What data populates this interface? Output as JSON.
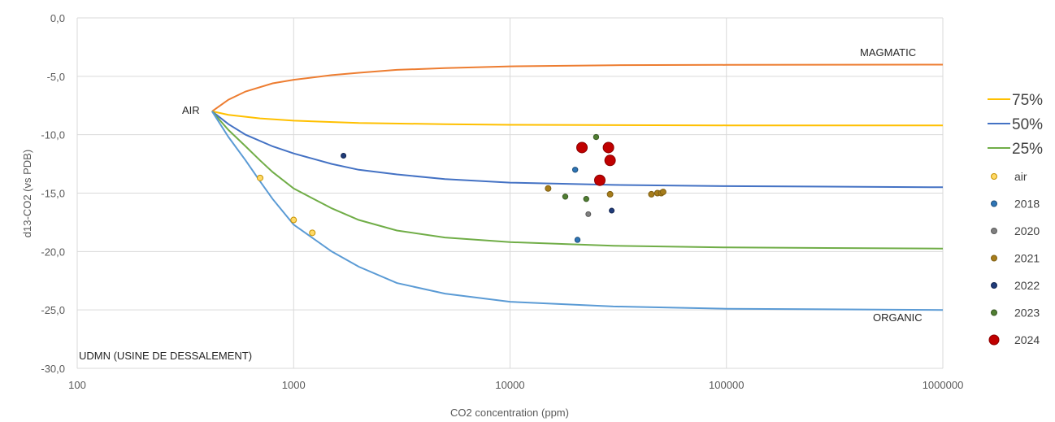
{
  "chart_data": {
    "type": "scatter",
    "title": "",
    "xlabel": "CO2 concentration (ppm)",
    "ylabel": "d13-CO2 (vs PDB)",
    "xscale": "log",
    "xlim": [
      100,
      1000000
    ],
    "ylim": [
      -30,
      0
    ],
    "x_ticks": [
      "100",
      "1000",
      "10000",
      "100000",
      "1000000"
    ],
    "y_ticks": [
      "0,0",
      "-5,0",
      "-10,0",
      "-15,0",
      "-20,0",
      "-25,0",
      "-30,0"
    ],
    "grid": true,
    "legend_position": "right",
    "annotations": {
      "air": "AIR",
      "magmatic": "MAGMATIC",
      "organic": "ORGANIC",
      "site": "UDMN (USINE DE DESSALEMENT)"
    },
    "mixing_lines": [
      {
        "name": "",
        "color": "#ed7d31",
        "points": [
          [
            420,
            -8
          ],
          [
            500,
            -7.0
          ],
          [
            600,
            -6.3
          ],
          [
            800,
            -5.6
          ],
          [
            1000,
            -5.3
          ],
          [
            1500,
            -4.9
          ],
          [
            2000,
            -4.7
          ],
          [
            3000,
            -4.45
          ],
          [
            5000,
            -4.3
          ],
          [
            10000,
            -4.15
          ],
          [
            30000,
            -4.05
          ],
          [
            100000,
            -4.02
          ],
          [
            1000000,
            -4.0
          ]
        ]
      },
      {
        "name": "75%",
        "color": "#ffc000",
        "points": [
          [
            420,
            -8
          ],
          [
            500,
            -8.3
          ],
          [
            700,
            -8.6
          ],
          [
            1000,
            -8.8
          ],
          [
            2000,
            -9.0
          ],
          [
            5000,
            -9.1
          ],
          [
            10000,
            -9.15
          ],
          [
            100000,
            -9.2
          ],
          [
            1000000,
            -9.2
          ]
        ]
      },
      {
        "name": "50%",
        "color": "#4472c4",
        "points": [
          [
            420,
            -8
          ],
          [
            500,
            -9.1
          ],
          [
            600,
            -10.0
          ],
          [
            800,
            -11.0
          ],
          [
            1000,
            -11.6
          ],
          [
            1500,
            -12.5
          ],
          [
            2000,
            -13.0
          ],
          [
            3000,
            -13.4
          ],
          [
            5000,
            -13.8
          ],
          [
            10000,
            -14.1
          ],
          [
            30000,
            -14.3
          ],
          [
            100000,
            -14.4
          ],
          [
            1000000,
            -14.5
          ]
        ]
      },
      {
        "name": "25%",
        "color": "#70ad47",
        "points": [
          [
            420,
            -8
          ],
          [
            500,
            -9.6
          ],
          [
            600,
            -11.0
          ],
          [
            700,
            -12.2
          ],
          [
            800,
            -13.2
          ],
          [
            1000,
            -14.6
          ],
          [
            1500,
            -16.3
          ],
          [
            2000,
            -17.3
          ],
          [
            3000,
            -18.2
          ],
          [
            5000,
            -18.8
          ],
          [
            10000,
            -19.2
          ],
          [
            30000,
            -19.5
          ],
          [
            100000,
            -19.65
          ],
          [
            1000000,
            -19.75
          ]
        ]
      },
      {
        "name": "",
        "color": "#5b9bd5",
        "points": [
          [
            420,
            -8
          ],
          [
            500,
            -10.2
          ],
          [
            600,
            -12.2
          ],
          [
            700,
            -14.0
          ],
          [
            800,
            -15.5
          ],
          [
            1000,
            -17.7
          ],
          [
            1500,
            -20.0
          ],
          [
            2000,
            -21.3
          ],
          [
            3000,
            -22.7
          ],
          [
            5000,
            -23.6
          ],
          [
            10000,
            -24.3
          ],
          [
            30000,
            -24.7
          ],
          [
            100000,
            -24.9
          ],
          [
            1000000,
            -25.0
          ]
        ]
      }
    ],
    "series": [
      {
        "name": "air",
        "color": "#ffd966",
        "stroke": "#c69200",
        "size": 3.5,
        "x": [
          700,
          1000,
          1220
        ],
        "y": [
          -13.7,
          -17.3,
          -18.4
        ]
      },
      {
        "name": "2018",
        "color": "#2e75b6",
        "stroke": "#1f4e79",
        "size": 3.2,
        "x": [
          20000,
          20500
        ],
        "y": [
          -13.0,
          -19.0
        ]
      },
      {
        "name": "2020",
        "color": "#7f7f7f",
        "stroke": "#595959",
        "size": 3.0,
        "x": [
          23000
        ],
        "y": [
          -16.8
        ]
      },
      {
        "name": "2021",
        "color": "#a67c1a",
        "stroke": "#7f5f13",
        "size": 3.5,
        "x": [
          15000,
          29000,
          45000,
          48000,
          50000,
          51000
        ],
        "y": [
          -14.6,
          -15.1,
          -15.1,
          -15.0,
          -15.0,
          -14.9
        ]
      },
      {
        "name": "2022",
        "color": "#1f3b7a",
        "stroke": "#142650",
        "size": 3.0,
        "x": [
          1700,
          29500
        ],
        "y": [
          -11.8,
          -16.5
        ]
      },
      {
        "name": "2023",
        "color": "#507e32",
        "stroke": "#385723",
        "size": 3.2,
        "x": [
          18000,
          22500,
          25000
        ],
        "y": [
          -15.3,
          -15.5,
          -10.2
        ]
      },
      {
        "name": "2024",
        "color": "#c00000",
        "stroke": "#8b0000",
        "size": 6.5,
        "x": [
          21500,
          26000,
          28500,
          29000
        ],
        "y": [
          -11.1,
          -13.9,
          -11.1,
          -12.2
        ]
      }
    ]
  }
}
